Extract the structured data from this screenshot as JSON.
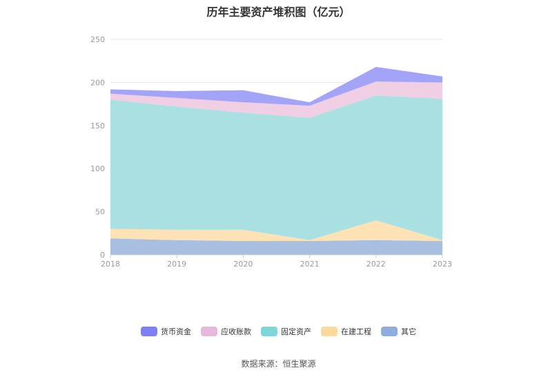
{
  "chart_data": {
    "type": "area",
    "stacked": true,
    "title": "历年主要资产堆积图（亿元）",
    "xlabel": "",
    "ylabel": "",
    "categories": [
      "2018",
      "2019",
      "2020",
      "2021",
      "2022",
      "2023"
    ],
    "ylim": [
      0,
      250
    ],
    "yticks": [
      0,
      50,
      100,
      150,
      200,
      250
    ],
    "grid": true,
    "legend_position": "bottom",
    "series": [
      {
        "name": "其它",
        "color": "#a9bfe0",
        "values": [
          19,
          17,
          16,
          16,
          17,
          16
        ]
      },
      {
        "name": "在建工程",
        "color": "#fde2b6",
        "values": [
          11,
          12,
          13,
          1,
          23,
          1
        ]
      },
      {
        "name": "固定资产",
        "color": "#a9e1e2",
        "values": [
          150,
          143,
          136,
          142,
          145,
          164
        ]
      },
      {
        "name": "应收账款",
        "color": "#f0cfe4",
        "values": [
          7,
          10,
          12,
          14,
          16,
          19
        ]
      },
      {
        "name": "货币资金",
        "color": "#a3a3f7",
        "values": [
          5,
          8,
          14,
          4,
          17,
          7
        ]
      }
    ],
    "legend_order": [
      "货币资金",
      "应收账款",
      "固定资产",
      "在建工程",
      "其它"
    ],
    "legend_colors": {
      "货币资金": "#7f7ff5",
      "应收账款": "#e7b8dc",
      "固定资产": "#7fd6d8",
      "在建工程": "#fcd99d",
      "其它": "#8fadde"
    }
  },
  "source": "数据来源：恒生聚源"
}
